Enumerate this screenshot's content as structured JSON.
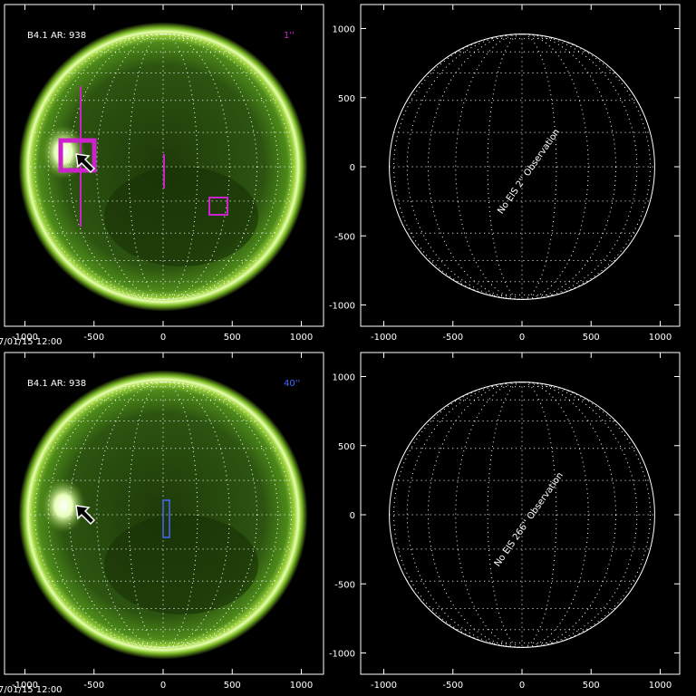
{
  "panels": [
    {
      "label": "B4.1  AR:  938",
      "slit": "1''",
      "timestamp": "7/01/15 12:00",
      "xticks": [
        -1000,
        -500,
        0,
        500,
        1000
      ]
    },
    {
      "message": "No EIS 2'' Observation",
      "xticks": [
        -1000,
        -500,
        0,
        500,
        1000
      ],
      "yticks": [
        1000,
        500,
        0,
        -500,
        -1000
      ]
    },
    {
      "label": "B4.1  AR:  938",
      "slit": "40''",
      "timestamp": "7/01/15 12:00",
      "xticks": [
        -1000,
        -500,
        0,
        500,
        1000
      ]
    },
    {
      "message": "No EIS 266'' Observation",
      "xticks": [
        -1000,
        -500,
        0,
        500,
        1000
      ],
      "yticks": [
        1000,
        500,
        0,
        -500,
        -1000
      ]
    }
  ]
}
